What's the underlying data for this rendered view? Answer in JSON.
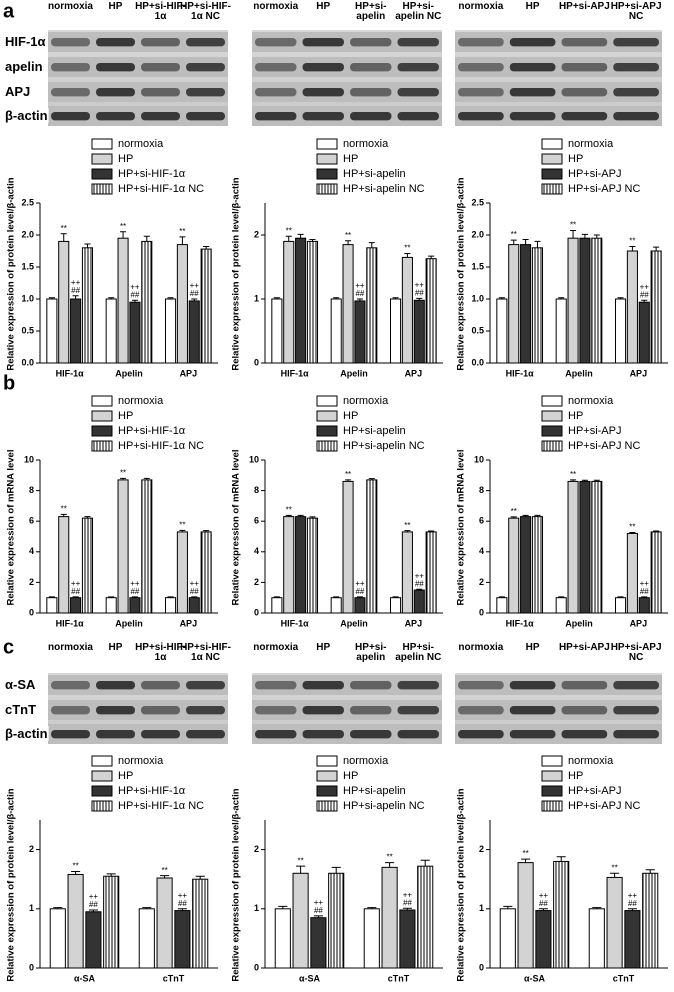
{
  "panel_labels": [
    "a",
    "b",
    "c"
  ],
  "blots": [
    {
      "rows": [
        "HIF-1α",
        "apelin",
        "APJ",
        "β-actin"
      ],
      "lanes": [
        [
          "normoxia",
          "HP",
          "HP+si-HIF-1α",
          "HP+si-HIF-1α NC"
        ],
        [
          "normoxia",
          "HP",
          "HP+si-apelin",
          "HP+si-apelin NC"
        ],
        [
          "normoxia",
          "HP",
          "HP+si-APJ",
          "HP+si-APJ NC"
        ]
      ]
    },
    {
      "rows": [
        "α-SA",
        "cTnT",
        "β-actin"
      ],
      "lanes": [
        [
          "normoxia",
          "HP",
          "HP+si-HIF-1α",
          "HP+si-HIF-1α NC"
        ],
        [
          "normoxia",
          "HP",
          "HP+si-apelin",
          "HP+si-apelin NC"
        ],
        [
          "normoxia",
          "HP",
          "HP+si-APJ",
          "HP+si-APJ NC"
        ]
      ]
    }
  ],
  "chart_data": [
    {
      "type": "bar",
      "y_label": "Relative expression of protein level/β-actin",
      "categories": [
        "HIF-1α",
        "Apelin",
        "APJ"
      ],
      "ylim": [
        0,
        2.5
      ],
      "yticks": [
        {
          "value": 0,
          "label": "0.0"
        },
        {
          "value": 0.5,
          "label": "0.5"
        },
        {
          "value": 1,
          "label": "1.0"
        },
        {
          "value": 1.5,
          "label": "1.5"
        },
        {
          "value": 2,
          "label": "2.0"
        },
        {
          "value": 2.5,
          "label": "2.5"
        }
      ],
      "series": [
        {
          "name": "normoxia",
          "color": "#ffffff",
          "values": [
            1,
            1,
            1
          ],
          "errors": [
            0.02,
            0.02,
            0.02
          ],
          "annotations": [
            null,
            null,
            null
          ]
        },
        {
          "name": "HP",
          "color": "#d3d3d3",
          "values": [
            1.9,
            1.95,
            1.85
          ],
          "errors": [
            0.12,
            0.1,
            0.12
          ],
          "annotations": [
            [
              "**"
            ],
            [
              "**"
            ],
            [
              "**"
            ]
          ]
        },
        {
          "name": "HP+si-HIF-1α",
          "color": "#333333",
          "values": [
            1,
            0.95,
            0.97
          ],
          "errors": [
            0.05,
            0.03,
            0.03
          ],
          "annotations": [
            [
              "++",
              "##"
            ],
            [
              "++",
              "##"
            ],
            [
              "++",
              "##"
            ]
          ]
        },
        {
          "name": "HP+si-HIF-1α NC",
          "color": "#ffffff",
          "hatch": true,
          "values": [
            1.8,
            1.9,
            1.78
          ],
          "errors": [
            0.06,
            0.08,
            0.04
          ],
          "annotations": [
            null,
            null,
            null
          ]
        }
      ]
    },
    {
      "type": "bar",
      "y_label": "Relative expression of protein level/β-actin",
      "categories": [
        "HIF-1α",
        "Apelin",
        "APJ"
      ],
      "ylim": [
        0,
        2.5
      ],
      "yticks": [
        {
          "value": 0,
          "label": "0"
        },
        {
          "value": 1,
          "label": "1"
        },
        {
          "value": 2,
          "label": "2"
        }
      ],
      "series": [
        {
          "name": "normoxia",
          "color": "#ffffff",
          "values": [
            1,
            1,
            1
          ],
          "errors": [
            0.02,
            0.02,
            0.02
          ],
          "annotations": [
            null,
            null,
            null
          ]
        },
        {
          "name": "HP",
          "color": "#d3d3d3",
          "values": [
            1.9,
            1.85,
            1.65
          ],
          "errors": [
            0.08,
            0.06,
            0.06
          ],
          "annotations": [
            [
              "**"
            ],
            [
              "**"
            ],
            [
              "**"
            ]
          ]
        },
        {
          "name": "HP+si-apelin",
          "color": "#333333",
          "values": [
            1.95,
            0.97,
            0.98
          ],
          "errors": [
            0.06,
            0.03,
            0.03
          ],
          "annotations": [
            null,
            [
              "++",
              "##"
            ],
            [
              "++",
              "##"
            ]
          ]
        },
        {
          "name": "HP+si-apelin NC",
          "color": "#ffffff",
          "hatch": true,
          "values": [
            1.9,
            1.8,
            1.63
          ],
          "errors": [
            0.03,
            0.08,
            0.04
          ],
          "annotations": [
            null,
            null,
            null
          ]
        }
      ]
    },
    {
      "type": "bar",
      "y_label": "Relative expression of protein level/β-actin",
      "categories": [
        "HIF-1α",
        "Apelin",
        "APJ"
      ],
      "ylim": [
        0,
        2.5
      ],
      "yticks": [
        {
          "value": 0,
          "label": "0.0"
        },
        {
          "value": 0.5,
          "label": "0.5"
        },
        {
          "value": 1,
          "label": "1.0"
        },
        {
          "value": 1.5,
          "label": "1.5"
        },
        {
          "value": 2,
          "label": "2.0"
        },
        {
          "value": 2.5,
          "label": "2.5"
        }
      ],
      "series": [
        {
          "name": "normoxia",
          "color": "#ffffff",
          "values": [
            1,
            1,
            1
          ],
          "errors": [
            0.02,
            0.02,
            0.02
          ],
          "annotations": [
            null,
            null,
            null
          ]
        },
        {
          "name": "HP",
          "color": "#d3d3d3",
          "values": [
            1.85,
            1.95,
            1.75
          ],
          "errors": [
            0.07,
            0.12,
            0.07
          ],
          "annotations": [
            [
              "**"
            ],
            [
              "**"
            ],
            [
              "**"
            ]
          ]
        },
        {
          "name": "HP+si-APJ",
          "color": "#333333",
          "values": [
            1.85,
            1.95,
            0.95
          ],
          "errors": [
            0.08,
            0.06,
            0.03
          ],
          "annotations": [
            null,
            null,
            [
              "++",
              "##"
            ]
          ]
        },
        {
          "name": "HP+si-APJ NC",
          "color": "#ffffff",
          "hatch": true,
          "values": [
            1.8,
            1.95,
            1.75
          ],
          "errors": [
            0.1,
            0.05,
            0.06
          ],
          "annotations": [
            null,
            null,
            null
          ]
        }
      ]
    },
    {
      "type": "bar",
      "y_label": "Relative expression of mRNA level",
      "categories": [
        "HIF-1α",
        "Apelin",
        "APJ"
      ],
      "ylim": [
        0,
        10
      ],
      "yticks": [
        0,
        2,
        4,
        6,
        8,
        10
      ],
      "series": [
        {
          "name": "normoxia",
          "color": "#ffffff",
          "values": [
            1,
            1,
            1
          ],
          "errors": [
            0.05,
            0.05,
            0.05
          ],
          "annotations": [
            null,
            null,
            null
          ]
        },
        {
          "name": "HP",
          "color": "#d3d3d3",
          "values": [
            6.3,
            8.7,
            5.3
          ],
          "errors": [
            0.15,
            0.1,
            0.1
          ],
          "annotations": [
            [
              "**"
            ],
            [
              "**"
            ],
            [
              "**"
            ]
          ]
        },
        {
          "name": "HP+si-HIF-1α",
          "color": "#333333",
          "values": [
            1,
            1,
            1
          ],
          "errors": [
            0.05,
            0.05,
            0.05
          ],
          "annotations": [
            [
              "++",
              "##"
            ],
            [
              "++",
              "##"
            ],
            [
              "++",
              "##"
            ]
          ]
        },
        {
          "name": "HP+si-HIF-1α NC",
          "color": "#ffffff",
          "hatch": true,
          "values": [
            6.2,
            8.7,
            5.3
          ],
          "errors": [
            0.1,
            0.1,
            0.08
          ],
          "annotations": [
            null,
            null,
            null
          ]
        }
      ]
    },
    {
      "type": "bar",
      "y_label": "Relative expression of mRNA level",
      "categories": [
        "HIF-1α",
        "Apelin",
        "APJ"
      ],
      "ylim": [
        0,
        10
      ],
      "yticks": [
        0,
        2,
        4,
        6,
        8,
        10
      ],
      "series": [
        {
          "name": "normoxia",
          "color": "#ffffff",
          "values": [
            1,
            1,
            1
          ],
          "errors": [
            0.05,
            0.05,
            0.05
          ],
          "annotations": [
            null,
            null,
            null
          ]
        },
        {
          "name": "HP",
          "color": "#d3d3d3",
          "values": [
            6.3,
            8.6,
            5.3
          ],
          "errors": [
            0.08,
            0.1,
            0.08
          ],
          "annotations": [
            [
              "**"
            ],
            [
              "**"
            ],
            [
              "**"
            ]
          ]
        },
        {
          "name": "HP+si-apelin",
          "color": "#333333",
          "values": [
            6.3,
            1,
            1.5
          ],
          "errors": [
            0.08,
            0.05,
            0.05
          ],
          "annotations": [
            null,
            [
              "++",
              "##"
            ],
            [
              "++",
              "##"
            ]
          ]
        },
        {
          "name": "HP+si-apelin NC",
          "color": "#ffffff",
          "hatch": true,
          "values": [
            6.2,
            8.7,
            5.3
          ],
          "errors": [
            0.08,
            0.08,
            0.06
          ],
          "annotations": [
            null,
            null,
            null
          ]
        }
      ]
    },
    {
      "type": "bar",
      "y_label": "Relative expression of mRNA level",
      "categories": [
        "HIF-1α",
        "Apelin",
        "APJ"
      ],
      "ylim": [
        0,
        10
      ],
      "yticks": [
        0,
        2,
        4,
        6,
        8,
        10
      ],
      "series": [
        {
          "name": "normoxia",
          "color": "#ffffff",
          "values": [
            1,
            1,
            1
          ],
          "errors": [
            0.05,
            0.05,
            0.05
          ],
          "annotations": [
            null,
            null,
            null
          ]
        },
        {
          "name": "HP",
          "color": "#d3d3d3",
          "values": [
            6.2,
            8.6,
            5.2
          ],
          "errors": [
            0.08,
            0.1,
            0.06
          ],
          "annotations": [
            [
              "**"
            ],
            [
              "**"
            ],
            [
              "**"
            ]
          ]
        },
        {
          "name": "HP+si-APJ",
          "color": "#333333",
          "values": [
            6.3,
            8.6,
            1
          ],
          "errors": [
            0.08,
            0.08,
            0.05
          ],
          "annotations": [
            null,
            null,
            [
              "++",
              "##"
            ]
          ]
        },
        {
          "name": "HP+si-APJ NC",
          "color": "#ffffff",
          "hatch": true,
          "values": [
            6.3,
            8.6,
            5.3
          ],
          "errors": [
            0.08,
            0.08,
            0.06
          ],
          "annotations": [
            null,
            null,
            null
          ]
        }
      ]
    },
    {
      "type": "bar",
      "y_label": "Relative expression of protein level/β-actin",
      "categories": [
        "α-SA",
        "cTnT"
      ],
      "ylim": [
        0,
        2.5
      ],
      "yticks": [
        0,
        1,
        2
      ],
      "series": [
        {
          "name": "normoxia",
          "color": "#ffffff",
          "values": [
            1,
            1
          ],
          "errors": [
            0.02,
            0.02
          ],
          "annotations": [
            null,
            null
          ]
        },
        {
          "name": "HP",
          "color": "#d3d3d3",
          "values": [
            1.58,
            1.52
          ],
          "errors": [
            0.05,
            0.04
          ],
          "annotations": [
            [
              "**"
            ],
            [
              "**"
            ]
          ]
        },
        {
          "name": "HP+si-HIF-1α",
          "color": "#333333",
          "values": [
            0.95,
            0.97
          ],
          "errors": [
            0.03,
            0.03
          ],
          "annotations": [
            [
              "++",
              "##"
            ],
            [
              "++",
              "##"
            ]
          ]
        },
        {
          "name": "HP+si-HIF-1α NC",
          "color": "#ffffff",
          "hatch": true,
          "values": [
            1.55,
            1.5
          ],
          "errors": [
            0.04,
            0.05
          ],
          "annotations": [
            null,
            null
          ]
        }
      ]
    },
    {
      "type": "bar",
      "y_label": "Relative expression of protein level/β-actin",
      "categories": [
        "α-SA",
        "cTnT"
      ],
      "ylim": [
        0,
        2.5
      ],
      "yticks": [
        0,
        1,
        2
      ],
      "series": [
        {
          "name": "normoxia",
          "color": "#ffffff",
          "values": [
            1,
            1
          ],
          "errors": [
            0.04,
            0.02
          ],
          "annotations": [
            null,
            null
          ]
        },
        {
          "name": "HP",
          "color": "#d3d3d3",
          "values": [
            1.6,
            1.7
          ],
          "errors": [
            0.12,
            0.08
          ],
          "annotations": [
            [
              "**"
            ],
            [
              "**"
            ]
          ]
        },
        {
          "name": "HP+si-apelin",
          "color": "#333333",
          "values": [
            0.85,
            0.98
          ],
          "errors": [
            0.03,
            0.03
          ],
          "annotations": [
            [
              "++",
              "##"
            ],
            [
              "++",
              "##"
            ]
          ]
        },
        {
          "name": "HP+si-apelin NC",
          "color": "#ffffff",
          "hatch": true,
          "values": [
            1.6,
            1.72
          ],
          "errors": [
            0.1,
            0.1
          ],
          "annotations": [
            null,
            null
          ]
        }
      ]
    },
    {
      "type": "bar",
      "y_label": "Relative expression of protein level/β-actin",
      "categories": [
        "α-SA",
        "cTnT"
      ],
      "ylim": [
        0,
        2.5
      ],
      "yticks": [
        0,
        1,
        2
      ],
      "series": [
        {
          "name": "normoxia",
          "color": "#ffffff",
          "values": [
            1,
            1
          ],
          "errors": [
            0.04,
            0.02
          ],
          "annotations": [
            null,
            null
          ]
        },
        {
          "name": "HP",
          "color": "#d3d3d3",
          "values": [
            1.78,
            1.53
          ],
          "errors": [
            0.06,
            0.07
          ],
          "annotations": [
            [
              "**"
            ],
            [
              "**"
            ]
          ]
        },
        {
          "name": "HP+si-APJ",
          "color": "#333333",
          "values": [
            0.97,
            0.97
          ],
          "errors": [
            0.03,
            0.03
          ],
          "annotations": [
            [
              "++",
              "##"
            ],
            [
              "++",
              "##"
            ]
          ]
        },
        {
          "name": "HP+si-APJ NC",
          "color": "#ffffff",
          "hatch": true,
          "values": [
            1.8,
            1.6
          ],
          "errors": [
            0.08,
            0.06
          ],
          "annotations": [
            null,
            null
          ]
        }
      ]
    }
  ]
}
